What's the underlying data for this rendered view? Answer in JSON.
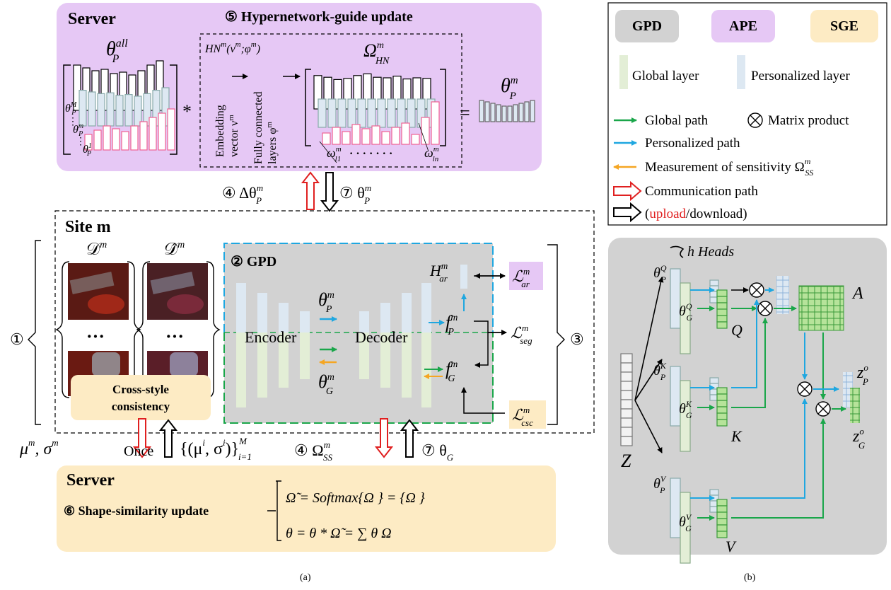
{
  "top_server": {
    "title": "Server",
    "step5": "⑤ Hypernetwork-guide update",
    "theta_all_label": "θ",
    "theta_all_sup": "all",
    "theta_all_sub": "P",
    "stack_labels": [
      "θ",
      "θ",
      "θ"
    ],
    "stack_sup": [
      "M",
      "m",
      "1"
    ],
    "stack_sub": [
      "P",
      "P",
      "P"
    ],
    "multiply": "*",
    "hn_title": "HN",
    "hn_title_sup": "m",
    "hn_title_args": "(ν",
    "hn_title_rest": ";φ",
    "hn_title_close": ")",
    "embedding_label": [
      "Embedding",
      "vector ν"
    ],
    "embedding_sup": "m",
    "fc_label": [
      "Fully connected",
      "layers φ"
    ],
    "fc_sup": "m",
    "omega_hn": "Ω",
    "omega_hn_sup": "m",
    "omega_hn_sub": "HN",
    "omega_l1": "ω",
    "omega_l1_sup": "m",
    "omega_l1_sub": "l1",
    "dots": "· · · · · · ·",
    "omega_ln": "ω",
    "omega_ln_sup": "m",
    "omega_ln_sub": "ln",
    "equals": "=",
    "theta_p": "θ",
    "theta_p_sup": "m",
    "theta_p_sub": "P"
  },
  "comm_top": {
    "up": "④ Δθ",
    "up_sup": "m",
    "up_sub": "P",
    "down": "⑦ θ",
    "down_sup": "m",
    "down_sub": "P"
  },
  "site": {
    "title": "Site m",
    "d_label": "𝒟",
    "d_sup": "m",
    "dhat_label": "𝒟̂",
    "dhat_sup": "m",
    "ellipsis": "···",
    "csc_box": [
      "Cross-style",
      "consistency"
    ],
    "step1": "①",
    "gpd_title": "② GPD",
    "encoder": "Encoder",
    "decoder": "Decoder",
    "theta_p": "θ",
    "theta_p_sup": "m",
    "theta_p_sub": "P",
    "theta_g": "θ",
    "theta_g_sup": "m",
    "theta_g_sub": "G",
    "h_ar": "H",
    "h_ar_sup": "m",
    "h_ar_sub": "ar",
    "f_p": "f",
    "f_p_sup": "m",
    "f_p_sub": "P",
    "f_g": "f",
    "f_g_sup": "m",
    "f_g_sub": "G",
    "loss_ar": "ℒ",
    "loss_ar_sup": "m",
    "loss_ar_sub": "ar",
    "loss_seg": "ℒ",
    "loss_seg_sup": "m",
    "loss_seg_sub": "seg",
    "loss_csc": "ℒ",
    "loss_csc_sup": "m",
    "loss_csc_sub": "csc",
    "step3": "③"
  },
  "comm_bottom": {
    "mu_sigma": "μ",
    "mu_sigma_mid": ", σ",
    "mu_sigma_sup": "m",
    "once": "Once",
    "set": "{(μ",
    "set_mid": ", σ",
    "set_close": ")}",
    "set_sup": "i",
    "set_lim_top": "M",
    "set_lim_bot": "i=1",
    "omega_ss": "④ Ω",
    "omega_ss_sup": "m",
    "omega_ss_sub": "SS",
    "theta_g": "⑦ θ",
    "theta_g_sub": "G"
  },
  "bottom_server": {
    "title": "Server",
    "step6": "⑥ Shape-similarity update",
    "eq1": "Ω̃ = Softmax{Ω } = {Ω }",
    "eq2": "θ = θ * Ω̃ = ∑ θ Ω"
  },
  "legend": {
    "gpd": "GPD",
    "ape": "APE",
    "sge": "SGE",
    "global_layer": "Global layer",
    "personalized_layer": "Personalized layer",
    "global_path": "Global path",
    "matrix_product": "Matrix product",
    "personalized_path": "Personalized path",
    "sensitivity": "Measurement of sensitivity Ω",
    "sensitivity_sup": "m",
    "sensitivity_sub": "SS",
    "comm_path": "Communication path",
    "upload": "upload",
    "download_rest": "/download)",
    "open_paren": "("
  },
  "panel_b": {
    "heads": "h Heads",
    "theta_pq": "θ",
    "theta_pq_sup": "Q",
    "theta_pq_sub": "P",
    "theta_gq": "θ",
    "theta_gq_sup": "Q",
    "theta_gq_sub": "G",
    "theta_pk": "θ",
    "theta_pk_sup": "K",
    "theta_pk_sub": "P",
    "theta_gk": "θ",
    "theta_gk_sup": "K",
    "theta_gk_sub": "G",
    "theta_pv": "θ",
    "theta_pv_sup": "V",
    "theta_pv_sub": "P",
    "theta_gv": "θ",
    "theta_gv_sup": "V",
    "theta_gv_sub": "G",
    "q": "Q",
    "k": "K",
    "v": "V",
    "a": "A",
    "z": "Z",
    "zp": "z",
    "zp_sup": "o",
    "zp_sub": "P",
    "zg": "z",
    "zg_sup": "o",
    "zg_sub": "G"
  },
  "captions": {
    "a": "(a)",
    "b": "(b)"
  },
  "colors": {
    "purple": "#e6c8f5",
    "yellow": "#fdebc4",
    "gray": "#d2d2d2",
    "green_layer": "#e3eed6",
    "blue_layer": "#dde8f2",
    "green_path": "#1aa64a",
    "blue_path": "#1fa7e0",
    "orange_path": "#f5a623",
    "red_path": "#e02020",
    "pink_bar": "#f06292"
  }
}
